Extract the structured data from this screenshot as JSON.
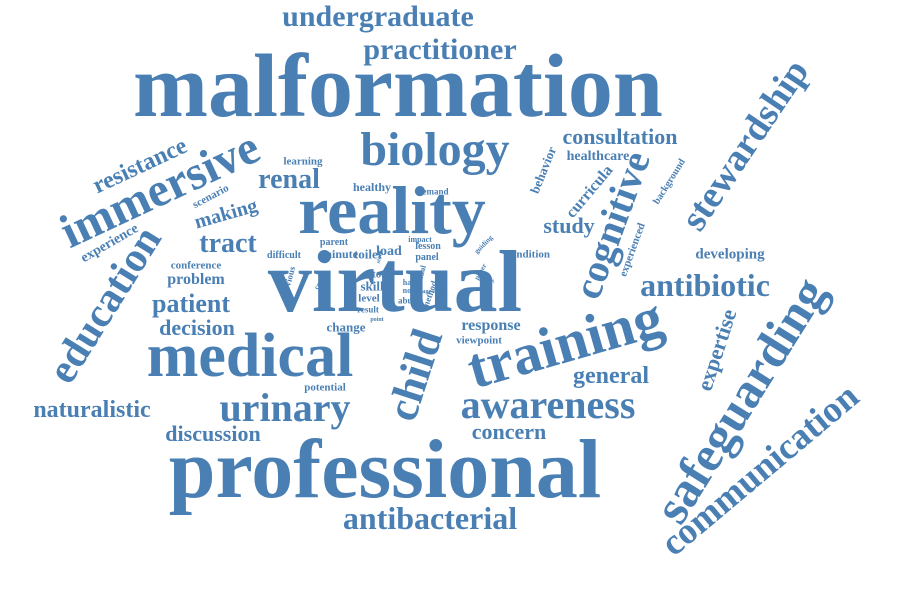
{
  "colors": {
    "word": "#4a7fb4",
    "background": "#ffffff"
  },
  "words": [
    {
      "text": "malformation"
    },
    {
      "text": "professional"
    },
    {
      "text": "virtual"
    },
    {
      "text": "reality"
    },
    {
      "text": "medical"
    },
    {
      "text": "training"
    },
    {
      "text": "safeguarding"
    },
    {
      "text": "communication"
    },
    {
      "text": "immersive"
    },
    {
      "text": "biology"
    },
    {
      "text": "awareness"
    },
    {
      "text": "urinary"
    },
    {
      "text": "education"
    },
    {
      "text": "child"
    },
    {
      "text": "cognitive"
    },
    {
      "text": "stewardship"
    },
    {
      "text": "antibacterial"
    },
    {
      "text": "undergraduate"
    },
    {
      "text": "practitioner"
    },
    {
      "text": "antibiotic"
    },
    {
      "text": "naturalistic"
    },
    {
      "text": "renal"
    },
    {
      "text": "tract"
    },
    {
      "text": "patient"
    },
    {
      "text": "resistance"
    },
    {
      "text": "consultation"
    },
    {
      "text": "decision"
    },
    {
      "text": "discussion"
    },
    {
      "text": "general"
    },
    {
      "text": "concern"
    },
    {
      "text": "expertise"
    },
    {
      "text": "study"
    },
    {
      "text": "making"
    },
    {
      "text": "problem"
    },
    {
      "text": "response"
    },
    {
      "text": "developing"
    },
    {
      "text": "curricula"
    },
    {
      "text": "healthcare"
    },
    {
      "text": "behavior"
    },
    {
      "text": "experience"
    },
    {
      "text": "scenario"
    },
    {
      "text": "learning"
    },
    {
      "text": "healthy"
    },
    {
      "text": "conference"
    },
    {
      "text": "potential"
    },
    {
      "text": "change"
    },
    {
      "text": "skill"
    },
    {
      "text": "level"
    },
    {
      "text": "load"
    },
    {
      "text": "toilet"
    },
    {
      "text": "minute"
    },
    {
      "text": "parent"
    },
    {
      "text": "viewpoint"
    },
    {
      "text": "condition"
    },
    {
      "text": "lesson"
    },
    {
      "text": "panel"
    },
    {
      "text": "tool"
    },
    {
      "text": "experienced"
    },
    {
      "text": "background"
    },
    {
      "text": "demand"
    },
    {
      "text": "impact"
    },
    {
      "text": "difficult"
    },
    {
      "text": "obvious"
    },
    {
      "text": "result"
    },
    {
      "text": "hard"
    },
    {
      "text": "note"
    },
    {
      "text": "abuse"
    },
    {
      "text": "annual"
    },
    {
      "text": "method"
    },
    {
      "text": "center"
    },
    {
      "text": "age-able"
    },
    {
      "text": "guiding"
    },
    {
      "text": "paper"
    },
    {
      "text": "ability"
    },
    {
      "text": "point"
    },
    {
      "text": "story"
    }
  ]
}
